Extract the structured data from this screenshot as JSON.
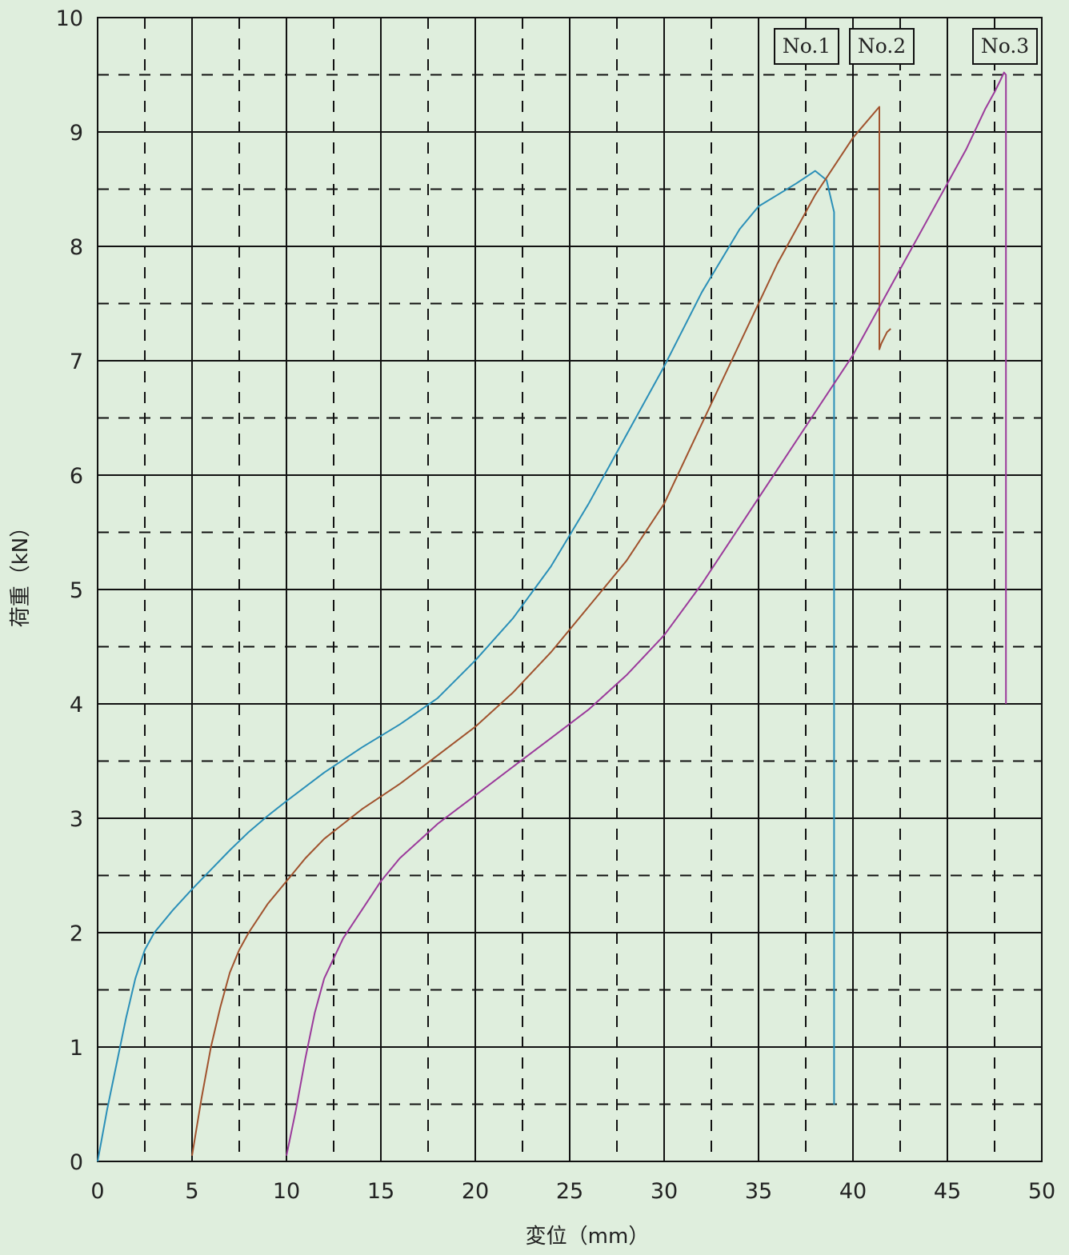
{
  "chart_data": {
    "type": "line",
    "xlabel": "変位（mm）",
    "ylabel": "荷重（kN）",
    "xlim": [
      0,
      50
    ],
    "ylim": [
      0,
      10
    ],
    "x_ticks": [
      "0",
      "5",
      "10",
      "15",
      "20",
      "25",
      "30",
      "35",
      "40",
      "45",
      "50"
    ],
    "y_ticks": [
      "0",
      "1",
      "2",
      "3",
      "4",
      "5",
      "6",
      "7",
      "8",
      "9",
      "10"
    ],
    "grid": "major solid every 5 mm / 1 kN, minor dashed every 2.5 mm / 0.5 kN",
    "legend_position": "top-right",
    "series": [
      {
        "name": "No.1",
        "color": "#2a8fb8",
        "x": [
          0,
          0.5,
          1,
          1.5,
          2,
          2.5,
          3,
          4,
          5,
          6,
          7,
          8,
          9,
          10,
          12,
          14,
          16,
          18,
          20,
          22,
          24,
          26,
          28,
          30,
          32,
          34,
          35,
          36,
          37,
          38,
          38.6,
          39,
          39,
          39
        ],
        "y": [
          0,
          0.45,
          0.85,
          1.25,
          1.6,
          1.85,
          2.0,
          2.2,
          2.38,
          2.55,
          2.72,
          2.88,
          3.02,
          3.15,
          3.4,
          3.62,
          3.82,
          4.05,
          4.38,
          4.75,
          5.2,
          5.75,
          6.35,
          6.95,
          7.6,
          8.15,
          8.35,
          8.45,
          8.55,
          8.66,
          8.58,
          8.3,
          0.5,
          1.1
        ]
      },
      {
        "name": "No.2",
        "color": "#a0522d",
        "x": [
          5,
          5.5,
          6,
          6.5,
          7,
          7.5,
          8,
          9,
          10,
          11,
          12,
          13,
          14,
          16,
          18,
          20,
          22,
          24,
          26,
          28,
          30,
          32,
          34,
          36,
          38,
          40,
          41.4,
          41.4,
          41.5,
          41.8,
          42
        ],
        "y": [
          0.05,
          0.55,
          1.0,
          1.35,
          1.65,
          1.85,
          2.0,
          2.25,
          2.45,
          2.65,
          2.82,
          2.95,
          3.08,
          3.3,
          3.55,
          3.8,
          4.1,
          4.45,
          4.85,
          5.25,
          5.75,
          6.45,
          7.15,
          7.85,
          8.45,
          8.95,
          9.22,
          7.1,
          7.15,
          7.25,
          7.28
        ]
      },
      {
        "name": "No.3",
        "color": "#9b3a9b",
        "x": [
          10,
          10.5,
          11,
          11.5,
          12,
          13,
          14,
          15,
          16,
          17,
          18,
          20,
          22,
          24,
          26,
          28,
          30,
          32,
          34,
          36,
          38,
          40,
          42,
          44,
          46,
          47,
          47.5,
          47.8,
          48,
          48.1,
          48.1,
          48.1,
          48.1
        ],
        "y": [
          0.05,
          0.45,
          0.9,
          1.3,
          1.6,
          1.95,
          2.2,
          2.45,
          2.65,
          2.8,
          2.95,
          3.2,
          3.45,
          3.7,
          3.95,
          4.25,
          4.6,
          5.05,
          5.55,
          6.05,
          6.55,
          7.05,
          7.65,
          8.25,
          8.85,
          9.2,
          9.35,
          9.45,
          9.52,
          9.5,
          6.0,
          4.4,
          4.0
        ]
      }
    ]
  }
}
